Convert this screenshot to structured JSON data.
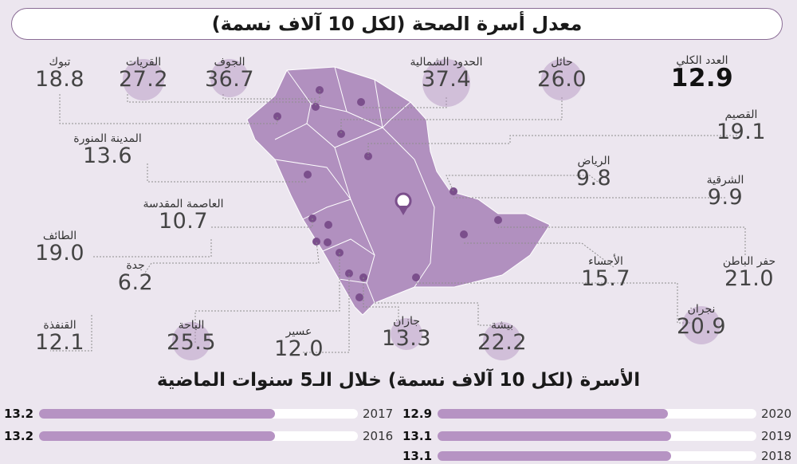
{
  "title": "معدل أسرة الصحة (لكل 10 آلاف نسمة)",
  "total": {
    "name": "العدد الكلي",
    "value": "12.9"
  },
  "regions": [
    {
      "id": "tabuk",
      "name": "تبوك",
      "value": "18.8"
    },
    {
      "id": "qurayyat",
      "name": "القريات",
      "value": "27.2"
    },
    {
      "id": "jouf",
      "name": "الجوف",
      "value": "36.7"
    },
    {
      "id": "northern-borders",
      "name": "الحدود الشمالية",
      "value": "37.4"
    },
    {
      "id": "hail",
      "name": "حائل",
      "value": "26.0"
    },
    {
      "id": "qassim",
      "name": "القصيم",
      "value": "19.1"
    },
    {
      "id": "madinah",
      "name": "المدينة المنورة",
      "value": "13.6"
    },
    {
      "id": "riyadh",
      "name": "الرياض",
      "value": "9.8"
    },
    {
      "id": "eastern",
      "name": "الشرقية",
      "value": "9.9"
    },
    {
      "id": "makkah",
      "name": "العاصمة المقدسة",
      "value": "10.7"
    },
    {
      "id": "taif",
      "name": "الطائف",
      "value": "19.0"
    },
    {
      "id": "hafr-albatin",
      "name": "حفر الباطن",
      "value": "21.0"
    },
    {
      "id": "jeddah",
      "name": "جدة",
      "value": "6.2"
    },
    {
      "id": "ahsa",
      "name": "الأحساء",
      "value": "15.7"
    },
    {
      "id": "najran",
      "name": "نجران",
      "value": "20.9"
    },
    {
      "id": "qunfudhah",
      "name": "القنفذة",
      "value": "12.1"
    },
    {
      "id": "baha",
      "name": "الباحة",
      "value": "25.5"
    },
    {
      "id": "asir",
      "name": "عسير",
      "value": "12.0"
    },
    {
      "id": "jazan",
      "name": "جازان",
      "value": "13.3"
    },
    {
      "id": "bisha",
      "name": "بيشة",
      "value": "22.2"
    }
  ],
  "history": {
    "title": "الأسرة (لكل 10 آلاف نسمة) خلال الـ5 سنوات الماضية",
    "max": 15,
    "years": [
      {
        "year": "2020",
        "value": 12.9,
        "label": "12.9"
      },
      {
        "year": "2019",
        "value": 13.1,
        "label": "13.1"
      },
      {
        "year": "2018",
        "value": 13.1,
        "label": "13.1"
      },
      {
        "year": "2017",
        "value": 13.2,
        "label": "13.2"
      },
      {
        "year": "2016",
        "value": 13.2,
        "label": "13.2"
      }
    ]
  },
  "colors": {
    "map_fill": "#b190bf",
    "map_stroke": "#ffffff",
    "pin": "#7b4f8c",
    "leader": "#8e8e8e",
    "bar_fill": "#b693c3"
  }
}
